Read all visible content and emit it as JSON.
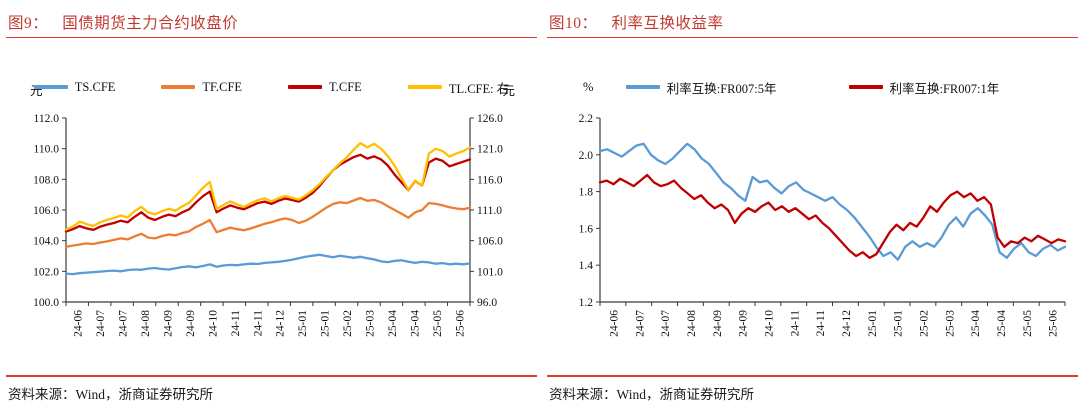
{
  "colors": {
    "title_red": "#c03a30",
    "rule_red": "#de3a2e",
    "axis": "#3a3a3a",
    "series_blue": "#5B9BD5",
    "series_orange": "#ED7D31",
    "series_dark_red": "#C00000",
    "series_yellow": "#FFC000"
  },
  "figures": [
    {
      "label": "图9：",
      "title": "国债期货主力合约收盘价",
      "source": "资料来源：Wind，浙商证券研究所"
    },
    {
      "label": "图10：",
      "title": "利率互换收益率",
      "source": "资料来源：Wind，浙商证券研究所"
    }
  ],
  "chart_data": [
    {
      "type": "line",
      "title": "国债期货主力合约收盘价",
      "ylabel_left": "元",
      "ylabel_right": "元",
      "legend_position": "top",
      "grid": false,
      "left_axis": {
        "min": 100.0,
        "max": 112.0,
        "ticks": [
          "112.0",
          "110.0",
          "108.0",
          "106.0",
          "104.0",
          "102.0",
          "100.0"
        ]
      },
      "right_axis": {
        "min": 96.0,
        "max": 126.0,
        "ticks": [
          "126.0",
          "121.0",
          "116.0",
          "111.0",
          "106.0",
          "101.0",
          "96.0"
        ]
      },
      "x_labels": [
        "24-06",
        "24-07",
        "24-07",
        "24-08",
        "24-09",
        "24-09",
        "24-10",
        "24-11",
        "24-11",
        "24-12",
        "25-01",
        "25-01",
        "25-02",
        "25-03",
        "25-04",
        "25-04",
        "25-05",
        "25-06"
      ],
      "series": [
        {
          "name": "TS.CFE",
          "color": "#5B9BD5",
          "axis": "left",
          "values": [
            101.85,
            101.82,
            101.88,
            101.92,
            101.95,
            101.98,
            102.02,
            102.05,
            102.0,
            102.08,
            102.12,
            102.1,
            102.18,
            102.22,
            102.15,
            102.12,
            102.2,
            102.28,
            102.32,
            102.26,
            102.35,
            102.45,
            102.3,
            102.38,
            102.42,
            102.4,
            102.45,
            102.5,
            102.48,
            102.55,
            102.58,
            102.62,
            102.68,
            102.75,
            102.85,
            102.95,
            103.02,
            103.08,
            103.0,
            102.92,
            103.02,
            102.95,
            102.88,
            102.95,
            102.85,
            102.78,
            102.65,
            102.6,
            102.68,
            102.72,
            102.62,
            102.55,
            102.62,
            102.58,
            102.5,
            102.54,
            102.46,
            102.5,
            102.46,
            102.52
          ]
        },
        {
          "name": "TF.CFE",
          "color": "#ED7D31",
          "axis": "left",
          "values": [
            103.6,
            103.68,
            103.75,
            103.82,
            103.78,
            103.88,
            103.95,
            104.05,
            104.15,
            104.08,
            104.28,
            104.45,
            104.2,
            104.15,
            104.3,
            104.4,
            104.35,
            104.5,
            104.62,
            104.9,
            105.1,
            105.35,
            104.55,
            104.7,
            104.85,
            104.75,
            104.68,
            104.8,
            104.95,
            105.1,
            105.2,
            105.35,
            105.45,
            105.35,
            105.15,
            105.3,
            105.55,
            105.85,
            106.15,
            106.4,
            106.5,
            106.45,
            106.62,
            106.78,
            106.6,
            106.65,
            106.5,
            106.25,
            106.0,
            105.75,
            105.5,
            105.85,
            106.0,
            106.45,
            106.4,
            106.3,
            106.18,
            106.1,
            106.05,
            106.15
          ]
        },
        {
          "name": "T.CFE",
          "color": "#C00000",
          "axis": "left",
          "values": [
            104.6,
            104.75,
            104.95,
            104.8,
            104.7,
            104.92,
            105.05,
            105.15,
            105.3,
            105.2,
            105.55,
            105.85,
            105.5,
            105.35,
            105.55,
            105.7,
            105.6,
            105.85,
            106.05,
            106.5,
            106.9,
            107.2,
            105.85,
            106.1,
            106.3,
            106.15,
            106.05,
            106.25,
            106.45,
            106.55,
            106.4,
            106.6,
            106.75,
            106.65,
            106.55,
            106.8,
            107.1,
            107.55,
            108.1,
            108.6,
            108.95,
            109.2,
            109.45,
            109.6,
            109.35,
            109.5,
            109.3,
            108.9,
            108.3,
            107.8,
            107.3,
            107.9,
            107.6,
            109.1,
            109.35,
            109.2,
            108.85,
            109.0,
            109.15,
            109.3
          ]
        },
        {
          "name": "TL.CFE: 右",
          "color": "#FFC000",
          "axis": "right",
          "values": [
            107.8,
            108.3,
            109.1,
            108.7,
            108.4,
            109.0,
            109.4,
            109.7,
            110.1,
            109.8,
            110.8,
            111.5,
            110.6,
            110.3,
            110.8,
            111.2,
            110.9,
            111.6,
            112.2,
            113.4,
            114.6,
            115.6,
            111.2,
            111.8,
            112.4,
            111.9,
            111.5,
            112.1,
            112.6,
            112.9,
            112.4,
            112.9,
            113.3,
            113.0,
            112.7,
            113.4,
            114.2,
            115.2,
            116.4,
            117.5,
            118.6,
            119.6,
            120.8,
            121.9,
            121.2,
            121.8,
            121.0,
            119.8,
            118.2,
            116.2,
            114.3,
            115.8,
            115.0,
            120.2,
            121.0,
            120.6,
            119.7,
            120.2,
            120.6,
            121.2
          ]
        }
      ]
    },
    {
      "type": "line",
      "title": "利率互换收益率",
      "ylabel_left": "%",
      "legend_position": "top",
      "grid": false,
      "left_axis": {
        "min": 1.2,
        "max": 2.2,
        "ticks": [
          "2.2",
          "2.0",
          "1.8",
          "1.6",
          "1.4",
          "1.2"
        ]
      },
      "x_labels": [
        "24-06",
        "24-07",
        "24-07",
        "24-08",
        "24-09",
        "24-09",
        "24-10",
        "24-11",
        "24-11",
        "24-12",
        "25-01",
        "25-01",
        "25-02",
        "25-03",
        "25-04",
        "25-04",
        "25-05",
        "25-06"
      ],
      "series": [
        {
          "name": "利率互换:FR007:5年",
          "color": "#5B9BD5",
          "axis": "left",
          "values": [
            2.02,
            2.03,
            2.01,
            1.99,
            2.02,
            2.05,
            2.06,
            2.0,
            1.97,
            1.95,
            1.98,
            2.02,
            2.06,
            2.03,
            1.98,
            1.95,
            1.9,
            1.85,
            1.82,
            1.78,
            1.75,
            1.88,
            1.85,
            1.86,
            1.82,
            1.79,
            1.83,
            1.85,
            1.81,
            1.79,
            1.77,
            1.75,
            1.77,
            1.73,
            1.7,
            1.66,
            1.61,
            1.56,
            1.5,
            1.45,
            1.47,
            1.43,
            1.5,
            1.53,
            1.5,
            1.52,
            1.5,
            1.55,
            1.62,
            1.66,
            1.61,
            1.68,
            1.71,
            1.67,
            1.62,
            1.47,
            1.44,
            1.49,
            1.52,
            1.47,
            1.45,
            1.49,
            1.51,
            1.48,
            1.5
          ]
        },
        {
          "name": "利率互换:FR007:1年",
          "color": "#C00000",
          "axis": "left",
          "values": [
            1.85,
            1.86,
            1.84,
            1.87,
            1.85,
            1.83,
            1.86,
            1.89,
            1.85,
            1.83,
            1.84,
            1.86,
            1.82,
            1.79,
            1.76,
            1.78,
            1.74,
            1.71,
            1.73,
            1.7,
            1.63,
            1.68,
            1.71,
            1.69,
            1.72,
            1.74,
            1.7,
            1.72,
            1.69,
            1.71,
            1.68,
            1.65,
            1.67,
            1.63,
            1.6,
            1.56,
            1.52,
            1.48,
            1.45,
            1.47,
            1.44,
            1.46,
            1.52,
            1.58,
            1.62,
            1.59,
            1.63,
            1.61,
            1.66,
            1.72,
            1.69,
            1.74,
            1.78,
            1.8,
            1.77,
            1.79,
            1.75,
            1.77,
            1.73,
            1.55,
            1.5,
            1.53,
            1.52,
            1.55,
            1.53,
            1.56,
            1.54,
            1.52,
            1.54,
            1.53
          ]
        }
      ]
    }
  ]
}
